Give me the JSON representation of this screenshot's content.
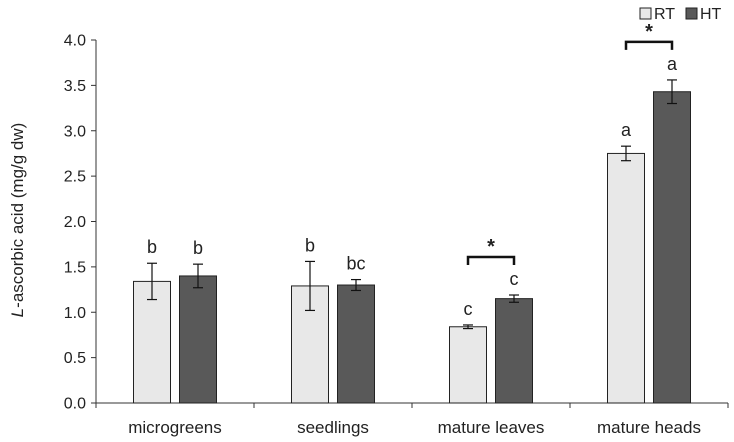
{
  "chart_data": {
    "type": "bar",
    "ylabel_italic": "L",
    "ylabel_rest": "-ascorbic acid (mg/g dw)",
    "xlabel": "",
    "ylim": [
      0,
      4.0
    ],
    "yticks": [
      "0.0",
      "0.5",
      "1.0",
      "1.5",
      "2.0",
      "2.5",
      "3.0",
      "3.5",
      "4.0"
    ],
    "categories": [
      "microgreens",
      "seedlings",
      "mature leaves",
      "mature heads"
    ],
    "series": [
      {
        "name": "RT",
        "color": "#e8e8e8",
        "values": [
          1.34,
          1.29,
          0.84,
          2.75
        ],
        "errors": [
          0.2,
          0.27,
          0.02,
          0.08
        ],
        "letters": [
          "b",
          "b",
          "c",
          "a"
        ]
      },
      {
        "name": "HT",
        "color": "#595959",
        "values": [
          1.4,
          1.3,
          1.15,
          3.43
        ],
        "errors": [
          0.13,
          0.06,
          0.04,
          0.13
        ],
        "letters": [
          "b",
          "bc",
          "c",
          "a"
        ]
      }
    ],
    "significance": [
      {
        "category": "mature leaves",
        "label": "*"
      },
      {
        "category": "mature heads",
        "label": "*"
      }
    ],
    "legend_position": "top-right",
    "grid": false
  }
}
